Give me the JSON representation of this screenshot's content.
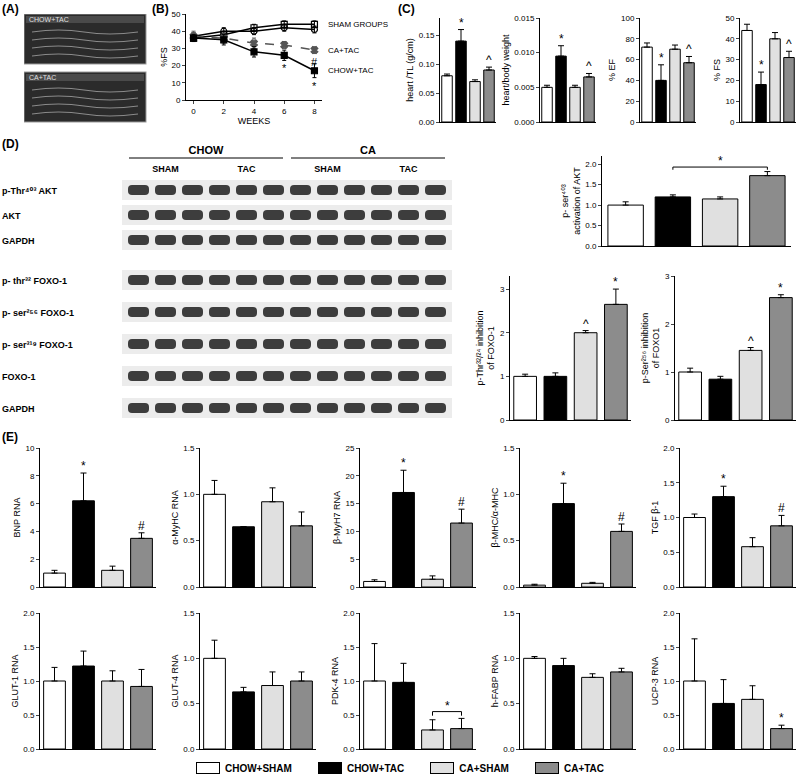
{
  "panel_labels": [
    "(A)",
    "(B)",
    "(C)",
    "(D)",
    "(E)"
  ],
  "echo": [
    "CHOW+TAC",
    "CA+TAC"
  ],
  "blot": {
    "groups": [
      {
        "label": "CHOW",
        "conditions": [
          "SHAM",
          "TAC"
        ]
      },
      {
        "label": "CA",
        "conditions": [
          "SHAM",
          "TAC"
        ]
      }
    ],
    "rows": [
      [
        "p-Thr⁴⁰³ AKT",
        "AKT",
        "GAPDH"
      ],
      [
        "p- thr³² FOXO-1",
        "p- ser²⁵⁶ FOXO-1",
        "p- ser³¹⁹ FOXO-1",
        "FOXO-1",
        "GAPDH"
      ]
    ]
  },
  "legend_entries": [
    {
      "name": "CHOW+SHAM",
      "color": "#ffffff"
    },
    {
      "name": "CHOW+TAC",
      "color": "#000000"
    },
    {
      "name": "CA+SHAM",
      "color": "#e0e0e0"
    },
    {
      "name": "CA+TAC",
      "color": "#8c8c8c"
    }
  ],
  "chart_data": [
    {
      "type": "line",
      "xlabel": "WEEKS",
      "ylabel": "%FS",
      "x": [
        0,
        2,
        4,
        6,
        8
      ],
      "xlim": [
        -0.5,
        8.5
      ],
      "xticks": [
        0,
        2,
        4,
        6,
        8
      ],
      "ylim": [
        0,
        50
      ],
      "yticks": [
        0,
        10,
        20,
        30,
        40,
        50
      ],
      "grid": false,
      "series": [
        {
          "name": "SHAM GROUPS",
          "color": "#000000",
          "marker": "square-open",
          "line_style": "solid",
          "values": [
            36,
            38,
            42,
            44,
            44
          ],
          "errors": [
            2,
            2,
            2,
            2,
            2
          ]
        },
        {
          "name": "SHAM GROUPS",
          "color": "#000000",
          "marker": "circle-open",
          "line_style": "solid",
          "values": [
            37,
            40,
            40,
            42,
            41
          ],
          "errors": [
            2,
            2,
            2,
            2,
            2
          ]
        },
        {
          "name": "CA+TAC",
          "color": "#555555",
          "marker": "x",
          "line_style": "dashed",
          "values": [
            37,
            36,
            33,
            32,
            29
          ],
          "errors": [
            3,
            3,
            3,
            2,
            2
          ],
          "significance": [
            null,
            null,
            null,
            null,
            "#"
          ]
        },
        {
          "name": "CHOW+TAC",
          "color": "#000000",
          "marker": "square",
          "line_style": "solid",
          "values": [
            36,
            35,
            28,
            26,
            17
          ],
          "errors": [
            2,
            3,
            3,
            3,
            4
          ],
          "significance": [
            null,
            null,
            null,
            "*",
            "*"
          ]
        }
      ]
    },
    {
      "type": "bar",
      "ylabel": "heart /TL (g/cm)",
      "categories": [
        "CHOW+SHAM",
        "CHOW+TAC",
        "CA+SHAM",
        "CA+TAC"
      ],
      "colors": [
        "#ffffff",
        "#000000",
        "#e0e0e0",
        "#8c8c8c"
      ],
      "values": [
        0.08,
        0.14,
        0.07,
        0.09
      ],
      "errors": [
        0.003,
        0.02,
        0.003,
        0.005
      ],
      "significance": [
        null,
        "*",
        null,
        "^"
      ],
      "ylim": [
        0,
        0.18
      ],
      "yticks": [
        {
          "value": 0,
          "label": "0.00"
        },
        0.05,
        {
          "value": 0.1,
          "label": "0.10"
        },
        0.15
      ],
      "grid": false,
      "tick_labels": "y"
    },
    {
      "type": "bar",
      "ylabel": "heart/body weight",
      "categories": [
        "CHOW+SHAM",
        "CHOW+TAC",
        "CA+SHAM",
        "CA+TAC"
      ],
      "colors": [
        "#ffffff",
        "#000000",
        "#e0e0e0",
        "#8c8c8c"
      ],
      "values": [
        0.005,
        0.0095,
        0.005,
        0.0065
      ],
      "errors": [
        0.0003,
        0.0015,
        0.0003,
        0.0005
      ],
      "significance": [
        null,
        "*",
        null,
        "^"
      ],
      "ylim": [
        0,
        0.015
      ],
      "yticks": [
        {
          "value": 0,
          "label": "0.000"
        },
        0.005,
        {
          "value": 0.01,
          "label": "0.010"
        },
        0.015
      ],
      "grid": false,
      "tick_labels": "y"
    },
    {
      "type": "bar",
      "ylabel": "% EF",
      "categories": [
        "CHOW+SHAM",
        "CHOW+TAC",
        "CA+SHAM",
        "CA+TAC"
      ],
      "colors": [
        "#ffffff",
        "#000000",
        "#e0e0e0",
        "#8c8c8c"
      ],
      "values": [
        72,
        40,
        70,
        57
      ],
      "errors": [
        4,
        15,
        4,
        6
      ],
      "significance": [
        null,
        "*",
        null,
        "^"
      ],
      "ylim": [
        0,
        100
      ],
      "yticks": [
        0,
        20,
        40,
        60,
        80,
        100
      ],
      "grid": false,
      "tick_labels": "y"
    },
    {
      "type": "bar",
      "ylabel": "% FS",
      "categories": [
        "CHOW+SHAM",
        "CHOW+TAC",
        "CA+SHAM",
        "CA+TAC"
      ],
      "colors": [
        "#ffffff",
        "#000000",
        "#e0e0e0",
        "#8c8c8c"
      ],
      "values": [
        44,
        18,
        40,
        31
      ],
      "errors": [
        3,
        6,
        3,
        3
      ],
      "significance": [
        null,
        "*",
        null,
        "^"
      ],
      "ylim": [
        0,
        50
      ],
      "yticks": [
        0,
        10,
        20,
        30,
        40,
        50
      ],
      "grid": false,
      "tick_labels": "y"
    },
    {
      "type": "bar",
      "ylabel": "p- ser⁴⁰³\nactivation of AKT",
      "categories": [
        "CHOW+SHAM",
        "CHOW+TAC",
        "CA+SHAM",
        "CA+TAC"
      ],
      "colors": [
        "#ffffff",
        "#000000",
        "#e0e0e0",
        "#8c8c8c"
      ],
      "values": [
        1.0,
        1.2,
        1.15,
        1.72
      ],
      "errors": [
        0.08,
        0.05,
        0.05,
        0.1
      ],
      "comparisons": [
        {
          "from": 1,
          "to": 3,
          "text": "*"
        }
      ],
      "ylim": [
        0,
        2.2
      ],
      "yticks": [
        {
          "value": 0,
          "label": "0.0"
        },
        0.5,
        {
          "value": 1,
          "label": "1.0"
        },
        1.5,
        {
          "value": 2,
          "label": "2.0"
        }
      ],
      "grid": false,
      "tick_labels": "y"
    },
    {
      "type": "bar",
      "ylabel": "p-Thr³²/²⁴ inhibition\nof FOXO-1",
      "categories": [
        "CHOW+SHAM",
        "CHOW+TAC",
        "CA+SHAM",
        "CA+TAC"
      ],
      "colors": [
        "#ffffff",
        "#000000",
        "#e0e0e0",
        "#8c8c8c"
      ],
      "values": [
        1.0,
        1.0,
        2.0,
        2.65
      ],
      "errors": [
        0.05,
        0.08,
        0.05,
        0.35
      ],
      "significance": [
        null,
        null,
        "^",
        "*"
      ],
      "ylim": [
        0,
        3.3
      ],
      "yticks": [
        0,
        1,
        2,
        3
      ],
      "grid": false,
      "tick_labels": "y"
    },
    {
      "type": "bar",
      "ylabel": "p-Ser²⁵⁶ inhibition\nof FOXO1",
      "categories": [
        "CHOW+SHAM",
        "CHOW+TAC",
        "CA+SHAM",
        "CA+TAC"
      ],
      "colors": [
        "#ffffff",
        "#000000",
        "#e0e0e0",
        "#8c8c8c"
      ],
      "values": [
        1.0,
        0.85,
        1.45,
        2.55
      ],
      "errors": [
        0.08,
        0.06,
        0.06,
        0.06
      ],
      "significance": [
        null,
        null,
        "^",
        "*"
      ],
      "ylim": [
        0,
        3
      ],
      "yticks": [
        0,
        1,
        2,
        3
      ],
      "grid": false,
      "tick_labels": "y"
    },
    {
      "type": "bar",
      "ylabel": "BNP RNA",
      "categories": [
        "CHOW+SHAM",
        "CHOW+TAC",
        "CA+SHAM",
        "CA+TAC"
      ],
      "colors": [
        "#ffffff",
        "#000000",
        "#e0e0e0",
        "#8c8c8c"
      ],
      "values": [
        1.0,
        6.2,
        1.2,
        3.5
      ],
      "errors": [
        0.2,
        2.0,
        0.3,
        0.4
      ],
      "significance": [
        null,
        "*",
        null,
        "#"
      ],
      "ylim": [
        0,
        10
      ],
      "yticks": [
        0,
        2,
        4,
        6,
        8,
        10
      ],
      "grid": false,
      "tick_labels": "y"
    },
    {
      "type": "bar",
      "ylabel": "α-MyHC RNA",
      "categories": [
        "CHOW+SHAM",
        "CHOW+TAC",
        "CA+SHAM",
        "CA+TAC"
      ],
      "colors": [
        "#ffffff",
        "#000000",
        "#e0e0e0",
        "#8c8c8c"
      ],
      "values": [
        1.0,
        0.65,
        0.92,
        0.66
      ],
      "errors": [
        0.15,
        0.0,
        0.15,
        0.15
      ],
      "ylim": [
        0,
        1.5
      ],
      "yticks": [
        {
          "value": 0,
          "label": "0.0"
        },
        0.5,
        {
          "value": 1,
          "label": "1.0"
        },
        1.5
      ],
      "grid": false,
      "tick_labels": "y"
    },
    {
      "type": "bar",
      "ylabel": "β-MyH7 RNA",
      "categories": [
        "CHOW+SHAM",
        "CHOW+TAC",
        "CA+SHAM",
        "CA+TAC"
      ],
      "colors": [
        "#ffffff",
        "#000000",
        "#e0e0e0",
        "#8c8c8c"
      ],
      "values": [
        1.0,
        17,
        1.4,
        11.5
      ],
      "errors": [
        0.3,
        4,
        0.6,
        2.5
      ],
      "significance": [
        null,
        "*",
        null,
        "#"
      ],
      "ylim": [
        0,
        25
      ],
      "yticks": [
        0,
        5,
        10,
        15,
        20,
        25
      ],
      "grid": false,
      "tick_labels": "y"
    },
    {
      "type": "bar",
      "ylabel": "β-MHC/α-MHC",
      "categories": [
        "CHOW+SHAM",
        "CHOW+TAC",
        "CA+SHAM",
        "CA+TAC"
      ],
      "colors": [
        "#ffffff",
        "#000000",
        "#e0e0e0",
        "#8c8c8c"
      ],
      "values": [
        0.02,
        0.9,
        0.04,
        0.6
      ],
      "errors": [
        0.01,
        0.22,
        0.01,
        0.08
      ],
      "significance": [
        null,
        "*",
        null,
        "#"
      ],
      "ylim": [
        0,
        1.5
      ],
      "yticks": [
        {
          "value": 0,
          "label": "0.0"
        },
        0.5,
        {
          "value": 1,
          "label": "1.0"
        },
        1.5
      ],
      "grid": false,
      "tick_labels": "y"
    },
    {
      "type": "bar",
      "ylabel": "TGF β-1",
      "categories": [
        "CHOW+SHAM",
        "CHOW+TAC",
        "CA+SHAM",
        "CA+TAC"
      ],
      "colors": [
        "#ffffff",
        "#000000",
        "#e0e0e0",
        "#8c8c8c"
      ],
      "values": [
        1.0,
        1.3,
        0.58,
        0.88
      ],
      "errors": [
        0.05,
        0.15,
        0.13,
        0.15
      ],
      "significance": [
        null,
        "*",
        null,
        "#"
      ],
      "ylim": [
        0,
        2
      ],
      "yticks": [
        {
          "value": 0,
          "label": "0.0"
        },
        0.5,
        {
          "value": 1,
          "label": "1.0"
        },
        1.5,
        {
          "value": 2,
          "label": "2.0"
        }
      ],
      "grid": false,
      "tick_labels": "y"
    },
    {
      "type": "bar",
      "ylabel": "GLUT-1 RNA",
      "categories": [
        "CHOW+SHAM",
        "CHOW+TAC",
        "CA+SHAM",
        "CA+TAC"
      ],
      "colors": [
        "#ffffff",
        "#000000",
        "#e0e0e0",
        "#8c8c8c"
      ],
      "values": [
        1.0,
        1.22,
        1.0,
        0.92
      ],
      "errors": [
        0.2,
        0.22,
        0.15,
        0.25
      ],
      "ylim": [
        0,
        2
      ],
      "yticks": [
        {
          "value": 0,
          "label": "0.0"
        },
        0.5,
        {
          "value": 1,
          "label": "1.0"
        },
        1.5,
        {
          "value": 2,
          "label": "2.0"
        }
      ],
      "grid": false,
      "tick_labels": "y"
    },
    {
      "type": "bar",
      "ylabel": "GLUT-4 RNA",
      "categories": [
        "CHOW+SHAM",
        "CHOW+TAC",
        "CA+SHAM",
        "CA+TAC"
      ],
      "colors": [
        "#ffffff",
        "#000000",
        "#e0e0e0",
        "#8c8c8c"
      ],
      "values": [
        1.0,
        0.63,
        0.7,
        0.75
      ],
      "errors": [
        0.2,
        0.05,
        0.15,
        0.1
      ],
      "ylim": [
        0,
        1.5
      ],
      "yticks": [
        {
          "value": 0,
          "label": "0.0"
        },
        0.5,
        {
          "value": 1,
          "label": "1.0"
        },
        1.5
      ],
      "grid": false,
      "tick_labels": "y"
    },
    {
      "type": "bar",
      "ylabel": "PDK-4 RNA",
      "categories": [
        "CHOW+SHAM",
        "CHOW+TAC",
        "CA+SHAM",
        "CA+TAC"
      ],
      "colors": [
        "#ffffff",
        "#000000",
        "#e0e0e0",
        "#8c8c8c"
      ],
      "values": [
        1.0,
        0.98,
        0.28,
        0.3
      ],
      "errors": [
        0.55,
        0.28,
        0.15,
        0.15
      ],
      "comparisons": [
        {
          "from": 2,
          "to": 3,
          "text": "*"
        }
      ],
      "ylim": [
        0,
        2
      ],
      "yticks": [
        {
          "value": 0,
          "label": "0.0"
        },
        0.5,
        {
          "value": 1,
          "label": "1.0"
        },
        1.5,
        {
          "value": 2,
          "label": "2.0"
        }
      ],
      "grid": false,
      "tick_labels": "y"
    },
    {
      "type": "bar",
      "ylabel": "h-FABP RNA",
      "categories": [
        "CHOW+SHAM",
        "CHOW+TAC",
        "CA+SHAM",
        "CA+TAC"
      ],
      "colors": [
        "#ffffff",
        "#000000",
        "#e0e0e0",
        "#8c8c8c"
      ],
      "values": [
        1.0,
        0.92,
        0.79,
        0.85
      ],
      "errors": [
        0.02,
        0.08,
        0.04,
        0.04
      ],
      "ylim": [
        0,
        1.5
      ],
      "yticks": [
        {
          "value": 0,
          "label": "0.0"
        },
        0.5,
        {
          "value": 1,
          "label": "1.0"
        },
        1.5
      ],
      "grid": false,
      "tick_labels": "y"
    },
    {
      "type": "bar",
      "ylabel": "UCP-3 RNA",
      "categories": [
        "CHOW+SHAM",
        "CHOW+TAC",
        "CA+SHAM",
        "CA+TAC"
      ],
      "colors": [
        "#ffffff",
        "#000000",
        "#e0e0e0",
        "#8c8c8c"
      ],
      "values": [
        1.0,
        0.67,
        0.73,
        0.3
      ],
      "errors": [
        0.62,
        0.35,
        0.2,
        0.05
      ],
      "significance": [
        null,
        null,
        null,
        "*"
      ],
      "ylim": [
        0,
        2
      ],
      "yticks": [
        {
          "value": 0,
          "label": "0.0"
        },
        0.5,
        {
          "value": 1,
          "label": "1.0"
        },
        1.5,
        {
          "value": 2,
          "label": "2.0"
        }
      ],
      "grid": false,
      "tick_labels": "y"
    }
  ]
}
